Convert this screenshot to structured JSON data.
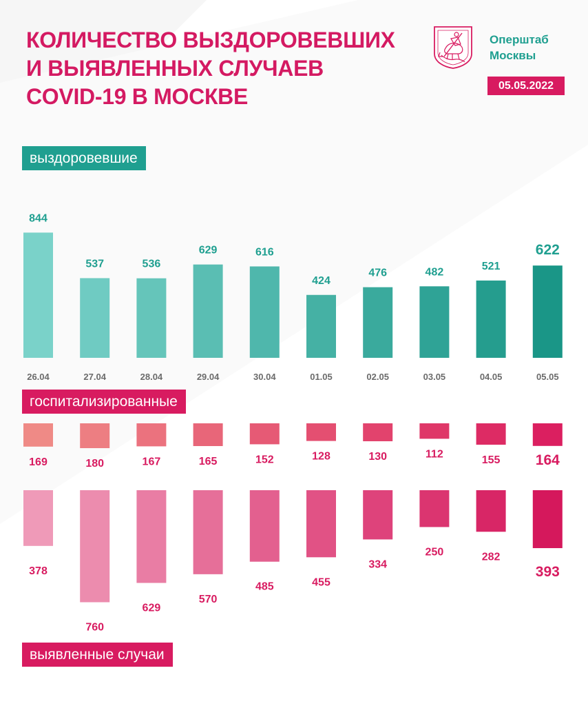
{
  "header": {
    "title_lines": [
      "Количество выздоровевших",
      "и выявленных случаев",
      "COVID-19 в Москве"
    ],
    "org_lines": [
      "Оперштаб",
      "Москвы"
    ],
    "date": "05.05.2022",
    "logo": "moscow-coat-of-arms-icon"
  },
  "colors": {
    "title": "#d41a62",
    "teal": "#1f9f90",
    "teal_light": "#7ad2c9",
    "teal_dark": "#1a9687",
    "pink": "#d81b60",
    "hosp_light": "#ef8a86",
    "hosp_dark": "#db1f60",
    "cases_light": "#ef9ab8",
    "cases_dark": "#d5185c",
    "date_text": "#6b6b6b"
  },
  "labels": {
    "recovered": "выздоровевшие",
    "hospitalized": "госпитализированные",
    "cases": "выявленные случаи"
  },
  "chart_data": [
    {
      "type": "bar",
      "name": "recovered",
      "title": "выздоровевшие",
      "categories": [
        "26.04",
        "27.04",
        "28.04",
        "29.04",
        "30.04",
        "01.05",
        "02.05",
        "03.05",
        "04.05",
        "05.05"
      ],
      "values": [
        844,
        537,
        536,
        629,
        616,
        424,
        476,
        482,
        521,
        622
      ],
      "grid": false,
      "legend": "none"
    },
    {
      "type": "bar",
      "name": "hospitalized",
      "title": "госпитализированные",
      "categories": [
        "26.04",
        "27.04",
        "28.04",
        "29.04",
        "30.04",
        "01.05",
        "02.05",
        "03.05",
        "04.05",
        "05.05"
      ],
      "values": [
        169,
        180,
        167,
        165,
        152,
        128,
        130,
        112,
        155,
        164
      ],
      "grid": false,
      "legend": "none"
    },
    {
      "type": "bar",
      "name": "cases",
      "title": "выявленные случаи",
      "categories": [
        "26.04",
        "27.04",
        "28.04",
        "29.04",
        "30.04",
        "01.05",
        "02.05",
        "03.05",
        "04.05",
        "05.05"
      ],
      "values": [
        378,
        760,
        629,
        570,
        485,
        455,
        334,
        250,
        282,
        393
      ],
      "grid": false,
      "legend": "none"
    }
  ]
}
